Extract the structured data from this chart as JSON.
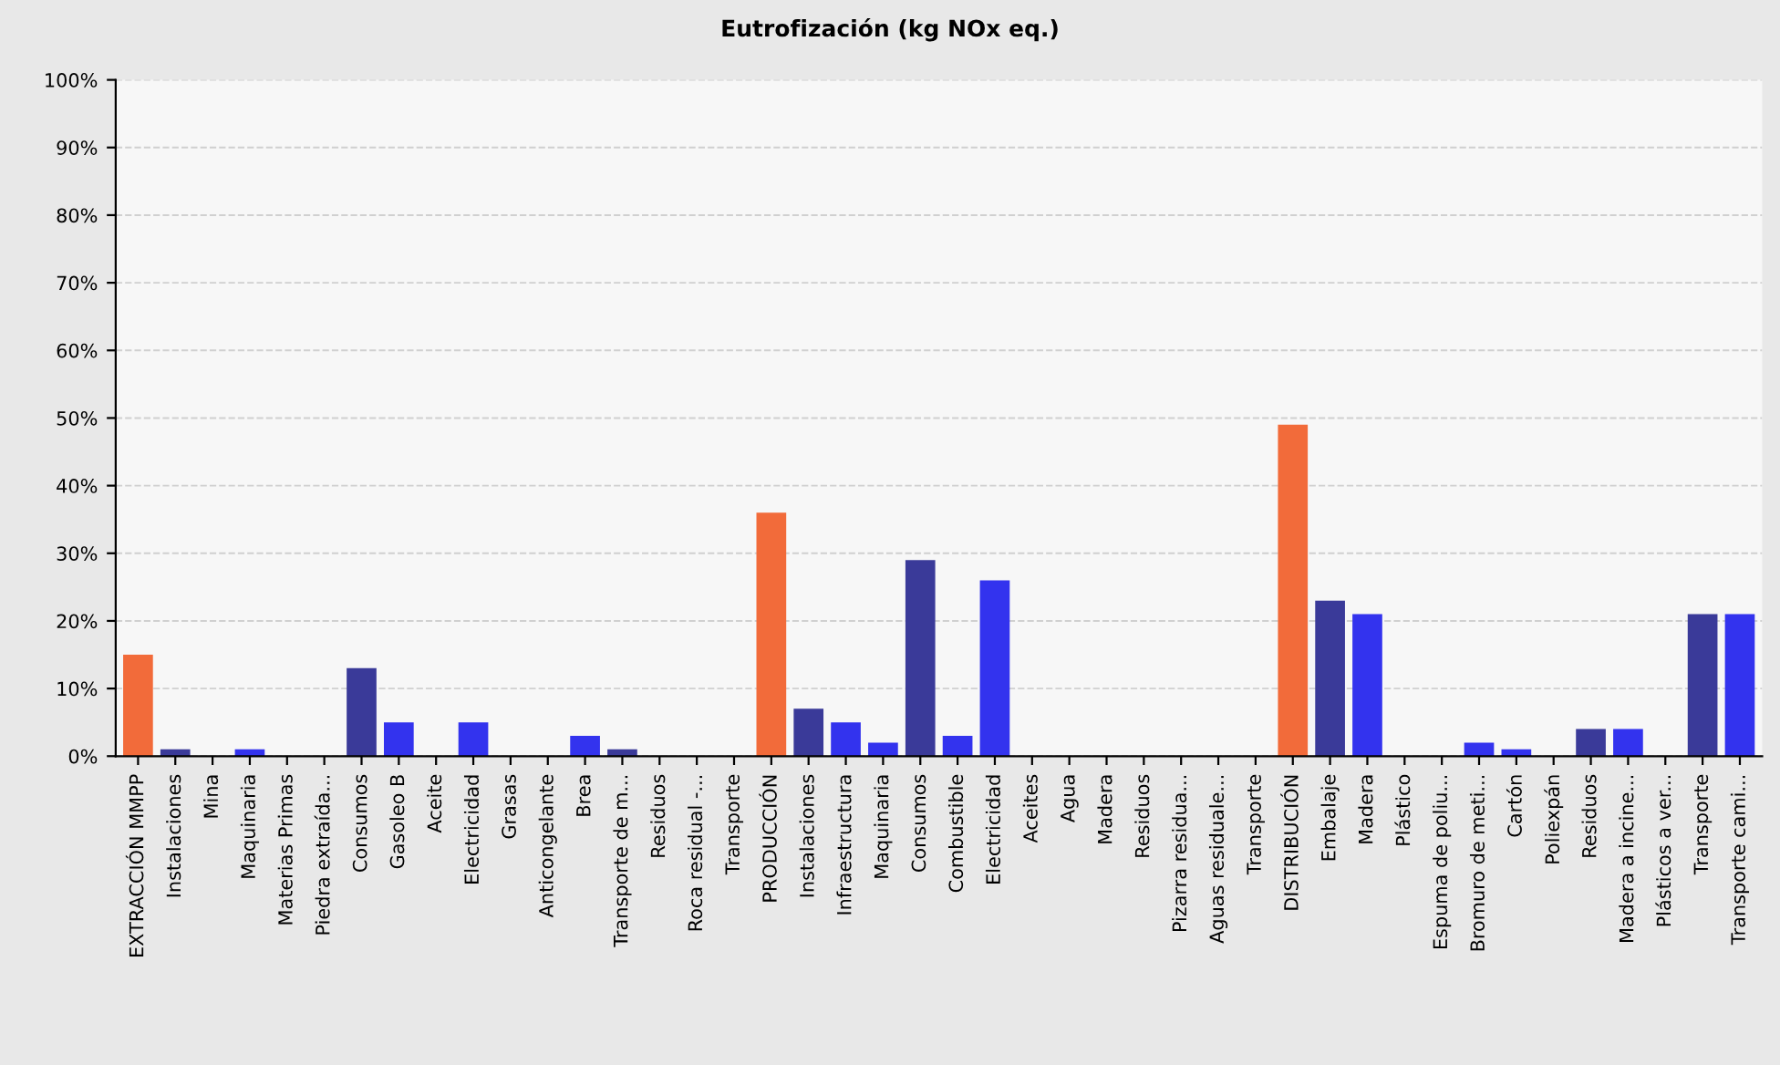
{
  "chart_data": {
    "type": "bar",
    "title": "Eutrofización (kg NOx eq.)",
    "categories": [
      "EXTRACCIÓN MMPP",
      "Instalaciones",
      "Mina",
      "Maquinaria",
      "Materias Primas",
      "Piedra extraída...",
      "Consumos",
      "Gasoleo B",
      "Aceite",
      "Electricidad",
      "Grasas",
      "Anticongelante",
      "Brea",
      "Transporte de m...",
      "Residuos",
      "Roca residual -...",
      "Transporte",
      "PRODUCCIÓN",
      "Instalaciones",
      "Infraestructura",
      "Maquinaria",
      "Consumos",
      "Combustible",
      "Electricidad",
      "Aceites",
      "Agua",
      "Madera",
      "Residuos",
      "Pizarra residua...",
      "Aguas residuale...",
      "Transporte",
      "DISTRIBUCIÓN",
      "Embalaje",
      "Madera",
      "Plástico",
      "Espuma de poliu...",
      "Bromuro de meti...",
      "Cartón",
      "Poliexpán",
      "Residuos",
      "Madera a incine...",
      "Plásticos a ver...",
      "Transporte",
      "Transporte cami..."
    ],
    "values": [
      15,
      1,
      0,
      1,
      0,
      0,
      13,
      5,
      0,
      5,
      0,
      0,
      3,
      1,
      0,
      0,
      0,
      36,
      7,
      5,
      2,
      29,
      3,
      26,
      0,
      0,
      0,
      0,
      0,
      0,
      0,
      49,
      23,
      21,
      0,
      0,
      2,
      1,
      0,
      4,
      4,
      0,
      21,
      21
    ],
    "colors": [
      "#f26b3a",
      "#3a3a99",
      "#3333ee",
      "#3333ee",
      "#3333ee",
      "#3333ee",
      "#3a3a99",
      "#3333ee",
      "#3333ee",
      "#3333ee",
      "#3333ee",
      "#3333ee",
      "#3333ee",
      "#3a3a99",
      "#3333ee",
      "#3333ee",
      "#3333ee",
      "#f26b3a",
      "#3a3a99",
      "#3333ee",
      "#3333ee",
      "#3a3a99",
      "#3333ee",
      "#3333ee",
      "#3333ee",
      "#3333ee",
      "#3333ee",
      "#3333ee",
      "#3333ee",
      "#3333ee",
      "#3333ee",
      "#f26b3a",
      "#3a3a99",
      "#3333ee",
      "#3333ee",
      "#3333ee",
      "#3333ee",
      "#3333ee",
      "#3333ee",
      "#3a3a99",
      "#3333ee",
      "#3333ee",
      "#3a3a99",
      "#3333ee"
    ],
    "ylim": [
      0,
      100
    ],
    "yticks": [
      {
        "value": 0,
        "label": "0%"
      },
      {
        "value": 10,
        "label": "10%"
      },
      {
        "value": 20,
        "label": "20%"
      },
      {
        "value": 30,
        "label": "30%"
      },
      {
        "value": 40,
        "label": "40%"
      },
      {
        "value": 50,
        "label": "50%"
      },
      {
        "value": 60,
        "label": "60%"
      },
      {
        "value": 70,
        "label": "70%"
      },
      {
        "value": 80,
        "label": "80%"
      },
      {
        "value": 90,
        "label": "90%"
      },
      {
        "value": 100,
        "label": "100%"
      }
    ],
    "grid": "y"
  }
}
